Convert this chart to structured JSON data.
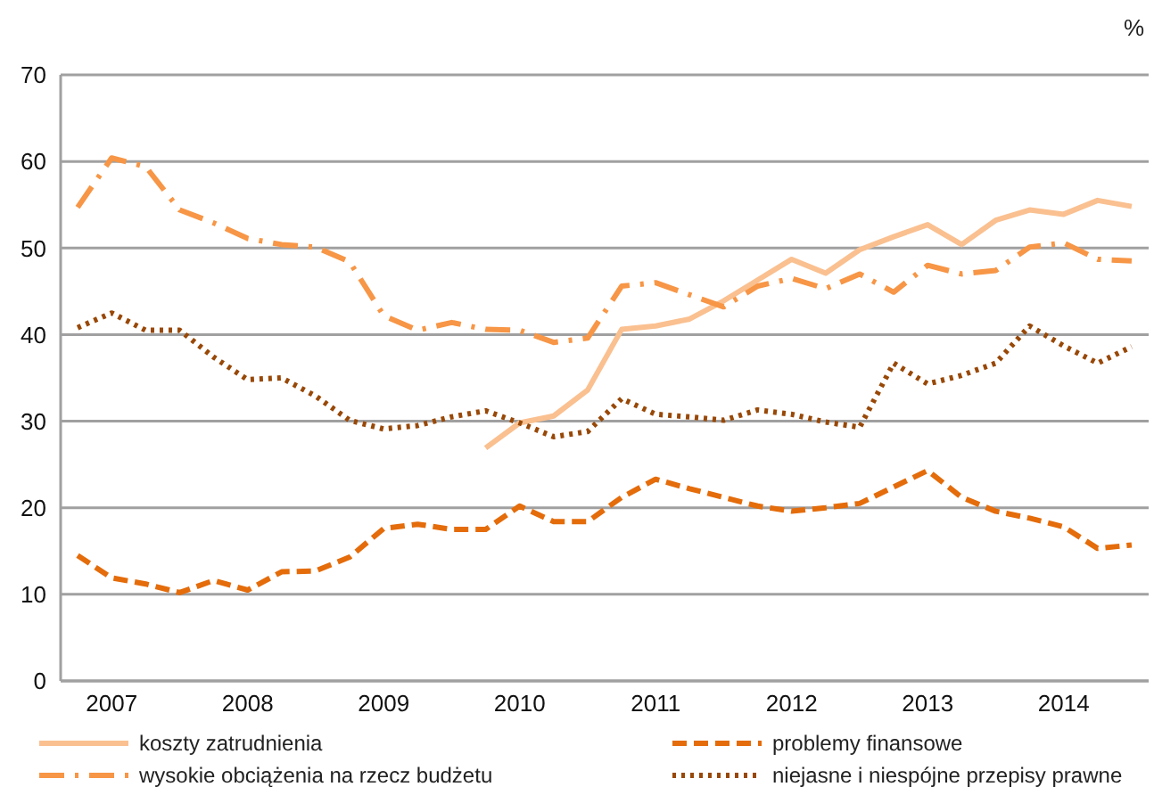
{
  "chart_data": {
    "type": "line",
    "ylabel": "%",
    "xlim": [
      2006.625,
      2014.625
    ],
    "xticks": [
      2007,
      2008,
      2009,
      2010,
      2011,
      2012,
      2013,
      2014
    ],
    "ylim": [
      0,
      70
    ],
    "yticks": [
      0,
      10,
      20,
      30,
      40,
      50,
      60,
      70
    ],
    "grid": "y",
    "legend": "bottom",
    "marker": "none",
    "x": [
      2006.75,
      2007,
      2007.25,
      2007.5,
      2007.75,
      2008,
      2008.25,
      2008.5,
      2008.75,
      2009,
      2009.25,
      2009.5,
      2009.75,
      2010,
      2010.25,
      2010.5,
      2010.75,
      2011,
      2011.25,
      2011.5,
      2011.75,
      2012,
      2012.25,
      2012.5,
      2012.75,
      2013,
      2013.25,
      2013.5,
      2013.75,
      2014,
      2014.25,
      2014.5
    ],
    "series": [
      {
        "name": "koszty zatrudnienia",
        "color": "#fac090",
        "line_style": "solid",
        "values": [
          null,
          null,
          null,
          null,
          null,
          null,
          null,
          null,
          null,
          null,
          null,
          null,
          26.9,
          29.8,
          30.6,
          33.6,
          40.6,
          41.0,
          41.8,
          43.9,
          46.3,
          48.7,
          47.1,
          49.8,
          51.3,
          52.7,
          50.4,
          53.2,
          54.4,
          53.9,
          55.5,
          54.8
        ]
      },
      {
        "name": "problemy finansowe",
        "color": "#e46c0a",
        "line_style": "dashed",
        "values": [
          14.5,
          11.9,
          11.2,
          10.2,
          11.6,
          10.5,
          12.6,
          12.7,
          14.3,
          17.6,
          18.1,
          17.5,
          17.5,
          20.2,
          18.4,
          18.4,
          21.2,
          23.3,
          22.2,
          21.2,
          20.2,
          19.6,
          20.0,
          20.5,
          22.4,
          24.3,
          21.2,
          19.6,
          18.8,
          17.8,
          15.3,
          15.7
        ]
      },
      {
        "name": "wysokie obciążenia na rzecz budżetu",
        "color": "#f79646",
        "line_style": "dashdot",
        "values": [
          54.7,
          60.4,
          59.4,
          54.4,
          52.9,
          51.1,
          50.4,
          50.1,
          48.4,
          42.2,
          40.5,
          41.4,
          40.6,
          40.5,
          39.1,
          39.6,
          45.6,
          46.0,
          44.6,
          43.2,
          45.6,
          46.5,
          45.3,
          47.0,
          44.9,
          48.0,
          47.0,
          47.4,
          50.1,
          50.6,
          48.7,
          48.5
        ]
      },
      {
        "name": "niejasne i niespójne przepisy prawne",
        "color": "#984807",
        "line_style": "dotted",
        "values": [
          40.8,
          42.5,
          40.5,
          40.5,
          37.4,
          34.8,
          35.0,
          32.9,
          30.1,
          29.1,
          29.5,
          30.5,
          31.2,
          29.8,
          28.2,
          28.8,
          32.6,
          30.8,
          30.5,
          30.1,
          31.3,
          30.8,
          29.9,
          29.3,
          36.7,
          34.3,
          35.3,
          36.7,
          41.0,
          38.7,
          36.7,
          38.6
        ]
      }
    ]
  }
}
